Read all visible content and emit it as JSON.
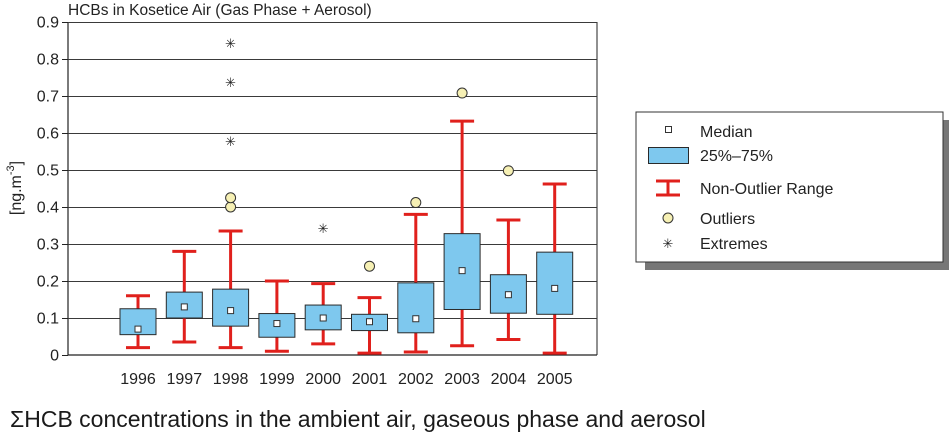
{
  "caption": "ΣHCB concentrations in the ambient air, gaseous phase and aerosol",
  "colors": {
    "box_fill": "#7ec8ee",
    "box_stroke": "#2a2a2a",
    "whisker": "#e0201c",
    "outlier_fill": "#f6f0b4",
    "grid": "#3a3a3a"
  },
  "chart_data": {
    "type": "box",
    "title": "HCBs in Kosetice Air (Gas Phase + Aerosol)",
    "ylabel": "[ng.m-3]",
    "ylim": [
      0,
      0.9
    ],
    "yticks": [
      "0",
      "0.1",
      "0.2",
      "0.3",
      "0.4",
      "0.5",
      "0.6",
      "0.7",
      "0.8",
      "0.9"
    ],
    "grid": true,
    "legend": {
      "placement": "right",
      "entries": [
        "Median",
        "25%–75%",
        "Non-Outlier Range",
        "Outliers",
        "Extremes"
      ]
    },
    "categories": [
      "1996",
      "1997",
      "1998",
      "1999",
      "2000",
      "2001",
      "2002",
      "2003",
      "2004",
      "2005"
    ],
    "series": [
      {
        "year": "1996",
        "min": 0.02,
        "q1": 0.055,
        "median": 0.07,
        "q3": 0.125,
        "max": 0.16,
        "outliers": [],
        "extremes": []
      },
      {
        "year": "1997",
        "min": 0.035,
        "q1": 0.1,
        "median": 0.13,
        "q3": 0.17,
        "max": 0.28,
        "outliers": [],
        "extremes": []
      },
      {
        "year": "1998",
        "min": 0.02,
        "q1": 0.078,
        "median": 0.12,
        "q3": 0.178,
        "max": 0.335,
        "outliers": [
          0.4,
          0.425
        ],
        "extremes": [
          0.578,
          0.738,
          0.843
        ]
      },
      {
        "year": "1999",
        "min": 0.01,
        "q1": 0.048,
        "median": 0.085,
        "q3": 0.112,
        "max": 0.2,
        "outliers": [],
        "extremes": []
      },
      {
        "year": "2000",
        "min": 0.03,
        "q1": 0.068,
        "median": 0.1,
        "q3": 0.135,
        "max": 0.193,
        "outliers": [],
        "extremes": [
          0.343
        ]
      },
      {
        "year": "2001",
        "min": 0.005,
        "q1": 0.066,
        "median": 0.09,
        "q3": 0.11,
        "max": 0.155,
        "outliers": [
          0.24
        ],
        "extremes": []
      },
      {
        "year": "2002",
        "min": 0.008,
        "q1": 0.06,
        "median": 0.098,
        "q3": 0.195,
        "max": 0.38,
        "outliers": [
          0.412
        ],
        "extremes": []
      },
      {
        "year": "2003",
        "min": 0.025,
        "q1": 0.123,
        "median": 0.228,
        "q3": 0.328,
        "max": 0.632,
        "outliers": [
          0.708
        ],
        "extremes": []
      },
      {
        "year": "2004",
        "min": 0.042,
        "q1": 0.113,
        "median": 0.163,
        "q3": 0.217,
        "max": 0.365,
        "outliers": [
          0.498
        ],
        "extremes": []
      },
      {
        "year": "2005",
        "min": 0.005,
        "q1": 0.11,
        "median": 0.18,
        "q3": 0.278,
        "max": 0.462,
        "outliers": [],
        "extremes": []
      }
    ]
  }
}
